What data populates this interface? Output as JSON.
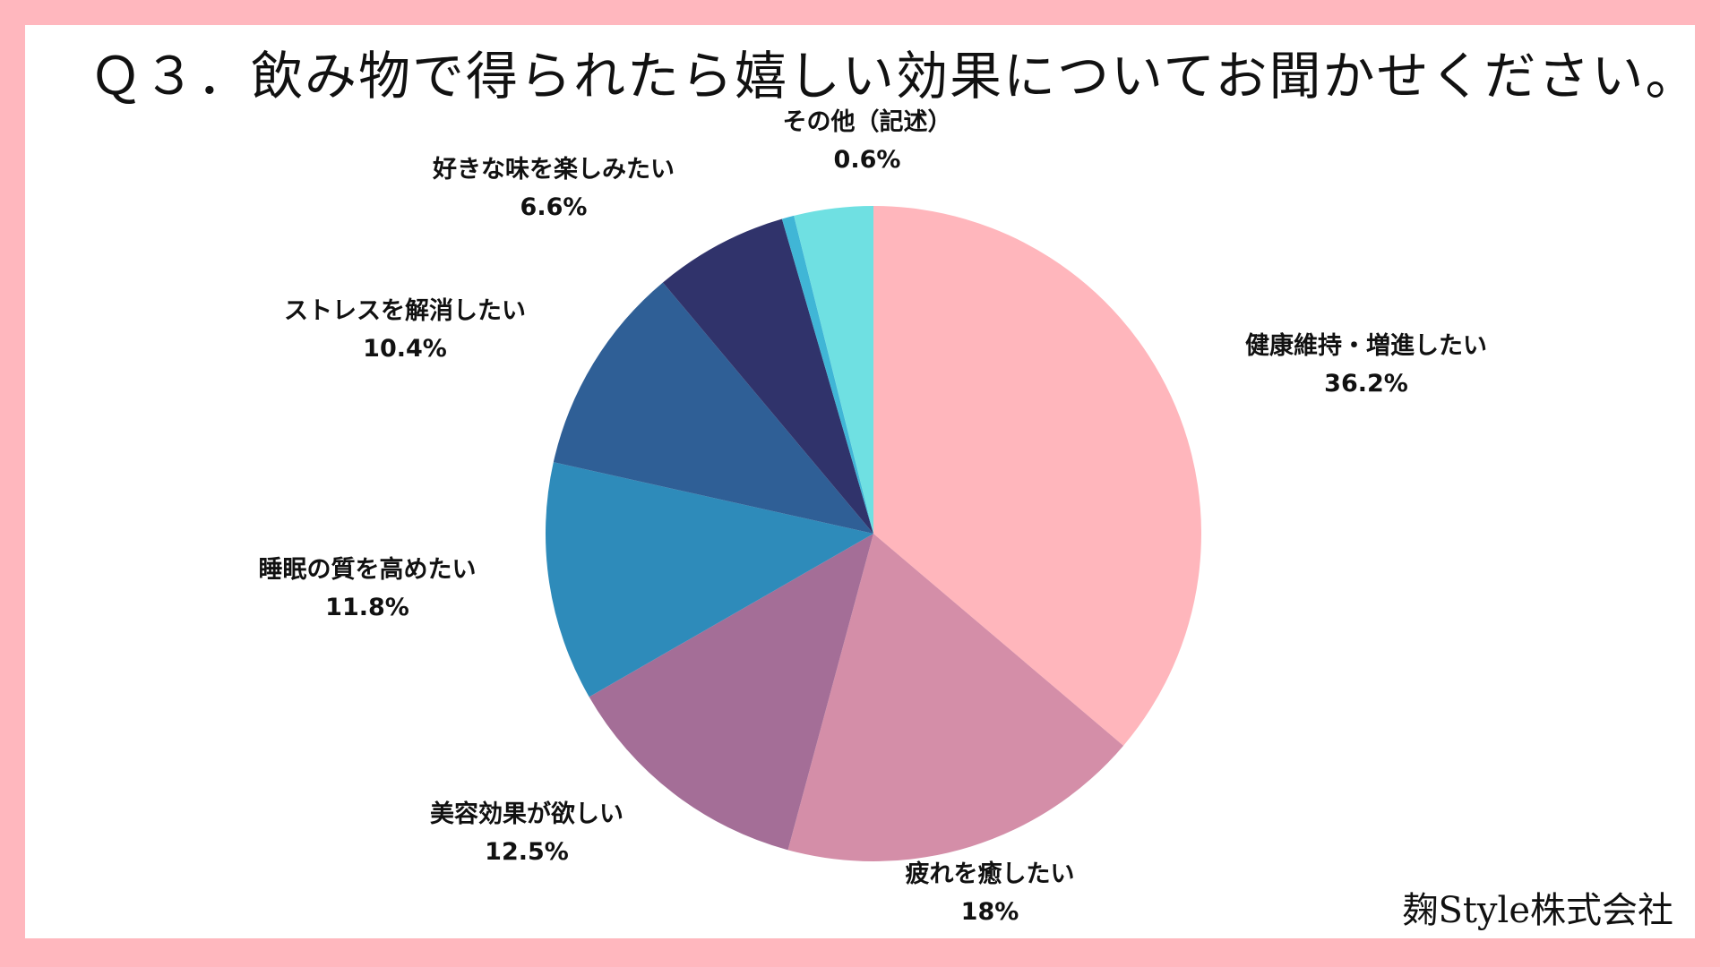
{
  "title": "Ｑ３．飲み物で得られたら嬉しい効果についてお聞かせください。",
  "footer": "麹Style株式会社",
  "chart_data": {
    "type": "pie",
    "start": "12 o'clock",
    "direction": "clockwise",
    "labels": [
      "健康維持・増進したい",
      "疲れを癒したい",
      "美容効果が欲しい",
      "睡眠の質を高めたい",
      "ストレスを解消したい",
      "好きな味を楽しみたい",
      "その他（記述）"
    ],
    "value_labels": [
      "36.2%",
      "18%",
      "12.5%",
      "11.8%",
      "10.4%",
      "6.6%",
      "0.6%"
    ],
    "values": [
      36.2,
      18,
      12.5,
      11.8,
      10.4,
      6.6,
      0.6
    ],
    "colors": [
      "#ffb6bc",
      "#d48ea8",
      "#a46e97",
      "#2e8bba",
      "#2f5f96",
      "#30336b",
      "#40b6d6"
    ],
    "extra_slice": {
      "value": 3.9,
      "color": "#6fe0e2"
    },
    "unit": "%"
  }
}
